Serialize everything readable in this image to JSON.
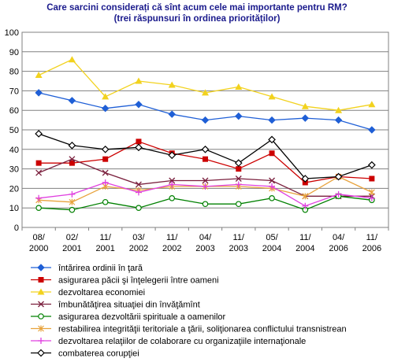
{
  "chart_data": {
    "type": "line",
    "title": "Care sarcini considerați că sînt acum cele mai importante pentru RM?",
    "subtitle": "(trei răspunsuri în ordinea priorităților)",
    "categories": [
      [
        "08/",
        "2000"
      ],
      [
        "02/",
        "2001"
      ],
      [
        "11/",
        "2001"
      ],
      [
        "03/",
        "2002"
      ],
      [
        "11/",
        "2002"
      ],
      [
        "04/",
        "2003"
      ],
      [
        "11/",
        "2003"
      ],
      [
        "05/",
        "2004"
      ],
      [
        "11/",
        "2004"
      ],
      [
        "04/",
        "2006"
      ],
      [
        "11/",
        "2006"
      ]
    ],
    "ylim": [
      0,
      100
    ],
    "yticks": [
      0,
      10,
      20,
      30,
      40,
      50,
      60,
      70,
      80,
      90,
      100
    ],
    "grid": "horizontal",
    "legend_position": "bottom",
    "series": [
      {
        "name": "întărirea ordinii în ţară",
        "color": "#1f5fd6",
        "marker": "diamond-filled",
        "values": [
          69,
          65,
          61,
          63,
          58,
          55,
          57,
          55,
          56,
          55,
          50
        ]
      },
      {
        "name": "asigurarea păcii şi înţelegerii între oameni",
        "color": "#cc0000",
        "marker": "square-filled",
        "values": [
          33,
          33,
          35,
          44,
          38,
          35,
          30,
          38,
          23,
          26,
          25
        ]
      },
      {
        "name": "dezvoltarea economiei",
        "color": "#f2d21e",
        "marker": "triangle-filled",
        "values": [
          78,
          86,
          67,
          75,
          73,
          69,
          72,
          67,
          62,
          60,
          63
        ]
      },
      {
        "name": "îmbunătăţirea situaţiei din învăţămînt",
        "color": "#7a1f3d",
        "marker": "x",
        "values": [
          28,
          35,
          28,
          22,
          24,
          24,
          25,
          24,
          16,
          16,
          16
        ]
      },
      {
        "name": "asigurarea dezvoltării spirituale a oamenilor",
        "color": "#008000",
        "marker": "circle-open",
        "values": [
          10,
          9,
          13,
          10,
          15,
          12,
          12,
          15,
          9,
          16,
          14
        ]
      },
      {
        "name": "restabilirea integrităţii teritoriale a ţării, soliţionarea conflictului transnistrean",
        "color": "#e8a33d",
        "marker": "star",
        "values": [
          14,
          13,
          21,
          19,
          21,
          21,
          21,
          20,
          16,
          26,
          18
        ]
      },
      {
        "name": "dezvoltarea relaţiilor de colaborare cu organizaţiile internaţionale",
        "color": "#e040e0",
        "marker": "plus",
        "values": [
          15,
          17,
          23,
          18,
          22,
          21,
          22,
          21,
          11,
          17,
          15
        ]
      },
      {
        "name": "combaterea corupţiei",
        "color": "#000000",
        "marker": "diamond-open",
        "values": [
          48,
          42,
          40,
          41,
          37,
          40,
          33,
          45,
          25,
          26,
          32
        ]
      }
    ]
  }
}
